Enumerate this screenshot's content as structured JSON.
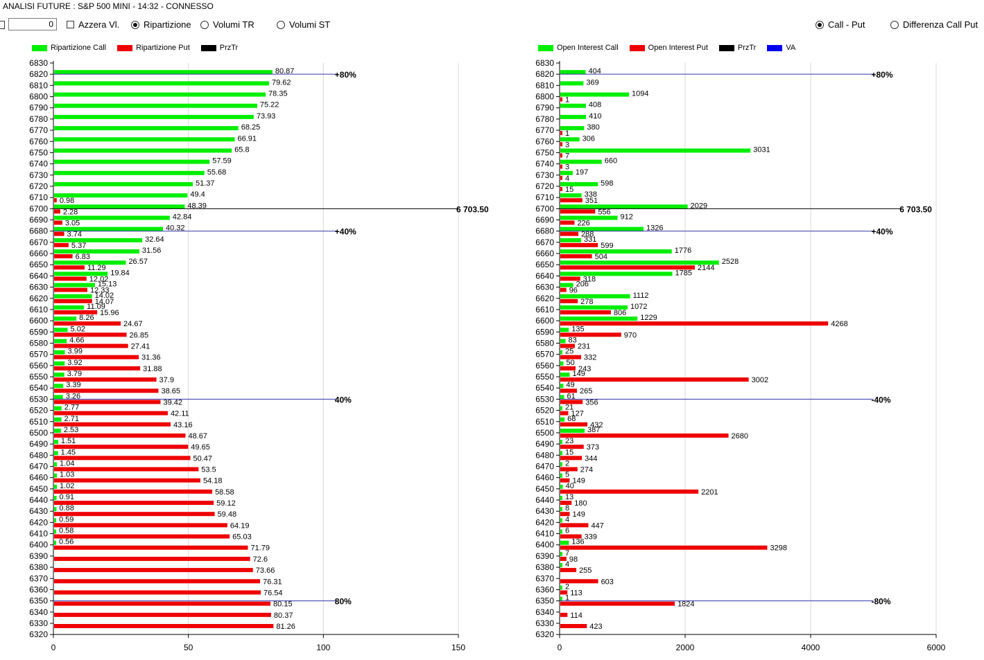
{
  "title": "ANALISI FUTURE : S&P 500 MINI - 14:32 - CONNESSO",
  "toolbar": {
    "number_value": "0",
    "azzera_label": "Azzera Vl.",
    "ripartizione_label": "Ripartizione",
    "volumi_tr_label": "Volumi TR",
    "volumi_st_label": "Volumi ST",
    "call_put_label": "Call - Put",
    "differenza_label": "Differenza Call Put"
  },
  "colors": {
    "call": "#00ee00",
    "put": "#ee0000",
    "przTr": "#000000",
    "va": "#0000ee",
    "level": "#3333aa",
    "grid": "#d8d8d8"
  },
  "legend_left": {
    "call": "Ripartizione Call",
    "put": "Ripartizione Put",
    "przTr": "PrzTr"
  },
  "legend_right": {
    "call": "Open Interest Call",
    "put": "Open Interest Put",
    "przTr": "PrzTr",
    "va": "VA"
  },
  "chart_data": [
    {
      "type": "bar",
      "title": "Ripartizione",
      "ylim": [
        6320,
        6830
      ],
      "xlim": [
        0,
        150
      ],
      "xticks": [
        "0",
        "50",
        "100",
        "150"
      ],
      "strikes": [
        6830,
        6820,
        6810,
        6800,
        6790,
        6780,
        6770,
        6760,
        6750,
        6740,
        6730,
        6720,
        6710,
        6700,
        6690,
        6680,
        6670,
        6660,
        6650,
        6640,
        6630,
        6620,
        6610,
        6600,
        6590,
        6580,
        6570,
        6560,
        6550,
        6540,
        6530,
        6520,
        6510,
        6500,
        6490,
        6480,
        6470,
        6460,
        6450,
        6440,
        6430,
        6420,
        6410,
        6400,
        6390,
        6380,
        6370,
        6360,
        6350,
        6340,
        6330,
        6320
      ],
      "series": [
        {
          "name": "Ripartizione Call",
          "values": [
            null,
            80.87,
            79.62,
            78.35,
            75.22,
            73.93,
            68.25,
            66.91,
            65.8,
            57.59,
            55.68,
            51.37,
            49.4,
            48.39,
            42.84,
            40.32,
            32.64,
            31.56,
            26.57,
            19.84,
            15.13,
            14.02,
            11.09,
            8.26,
            5.02,
            4.66,
            3.99,
            3.92,
            3.79,
            3.39,
            3.26,
            2.77,
            2.71,
            2.53,
            1.51,
            1.45,
            1.04,
            1.03,
            1.02,
            0.91,
            0.88,
            0.59,
            0.58,
            0.56,
            null,
            null,
            null,
            null,
            null,
            null,
            null,
            null
          ],
          "labels": [
            null,
            "80.87",
            "79.62",
            "78.35",
            "75.22",
            "73.93",
            "68.25",
            "66.91",
            "65.8",
            "57.59",
            "55.68",
            "51.37",
            "49.4",
            "48.39",
            "42.84",
            "40.32",
            "32.64",
            "31.56",
            "26.57",
            "19.84",
            "15.13",
            "14.02",
            "11.09",
            "8.26",
            "5.02",
            "4.66",
            "3.99",
            "3.92",
            "3.79",
            "3.39",
            "3.26",
            "2.77",
            "2.71",
            "2.53",
            "1.51",
            "1.45",
            "1.04",
            "1.03",
            "1.02",
            "0.91",
            "0.88",
            "0.59",
            "0.58",
            "0.56",
            null,
            null,
            null,
            null,
            null,
            null,
            null,
            null
          ]
        },
        {
          "name": "Ripartizione Put",
          "values": [
            null,
            null,
            null,
            null,
            null,
            null,
            null,
            null,
            null,
            null,
            null,
            null,
            0.98,
            2.28,
            3.05,
            3.74,
            5.37,
            6.83,
            11.29,
            12.02,
            12.33,
            14.07,
            15.96,
            24.67,
            26.85,
            27.41,
            31.36,
            31.88,
            37.9,
            38.65,
            39.42,
            42.11,
            43.16,
            48.67,
            49.65,
            50.47,
            53.5,
            54.18,
            58.58,
            59.12,
            59.48,
            64.19,
            65.03,
            71.79,
            72.6,
            73.66,
            76.31,
            76.54,
            80.15,
            80.37,
            81.26,
            null
          ],
          "labels": [
            null,
            null,
            null,
            null,
            null,
            null,
            null,
            null,
            null,
            null,
            null,
            null,
            "0.98",
            "2.28",
            "3.05",
            "3.74",
            "5.37",
            "6.83",
            "11.29",
            "12.02",
            "12.33",
            "14.07",
            "15.96",
            "24.67",
            "26.85",
            "27.41",
            "31.36",
            "31.88",
            "37.9",
            "38.65",
            "39.42",
            "42.11",
            "43.16",
            "48.67",
            "49.65",
            "50.47",
            "53.5",
            "54.18",
            "58.58",
            "59.12",
            "59.48",
            "64.19",
            "65.03",
            "71.79",
            "72.6",
            "73.66",
            "76.31",
            "76.54",
            "80.15",
            "80.37",
            "81.26",
            null
          ]
        }
      ],
      "levels": [
        {
          "strike": 6820,
          "label": "+80%",
          "x_end": 105,
          "kind": "level"
        },
        {
          "strike": 6700,
          "label": "6 703.50",
          "x_end": 150,
          "kind": "przTr"
        },
        {
          "strike": 6680,
          "label": "+40%",
          "x_end": 105,
          "kind": "level"
        },
        {
          "strike": 6530,
          "label": "40%",
          "x_end": 105,
          "kind": "level"
        },
        {
          "strike": 6350,
          "label": "80%",
          "x_end": 105,
          "kind": "level"
        }
      ]
    },
    {
      "type": "bar",
      "title": "Open Interest",
      "ylim": [
        6320,
        6830
      ],
      "xlim": [
        0,
        6000
      ],
      "xticks": [
        "0",
        "2000",
        "4000",
        "6000"
      ],
      "strikes": [
        6830,
        6820,
        6810,
        6800,
        6790,
        6780,
        6770,
        6760,
        6750,
        6740,
        6730,
        6720,
        6710,
        6700,
        6690,
        6680,
        6670,
        6660,
        6650,
        6640,
        6630,
        6620,
        6610,
        6600,
        6590,
        6580,
        6570,
        6560,
        6550,
        6540,
        6530,
        6520,
        6510,
        6500,
        6490,
        6480,
        6470,
        6460,
        6450,
        6440,
        6430,
        6420,
        6410,
        6400,
        6390,
        6380,
        6370,
        6360,
        6350,
        6340,
        6330,
        6320
      ],
      "series": [
        {
          "name": "Open Interest Call",
          "values": [
            null,
            404,
            369,
            1094,
            408,
            410,
            380,
            306,
            3031,
            660,
            197,
            598,
            338,
            2029,
            912,
            1326,
            331,
            1776,
            2528,
            1785,
            206,
            1112,
            1072,
            1229,
            135,
            83,
            25,
            50,
            149,
            49,
            61,
            21,
            68,
            387,
            23,
            15,
            2,
            5,
            40,
            13,
            8,
            4,
            6,
            136,
            7,
            4,
            null,
            2,
            1,
            null,
            null,
            null
          ],
          "labels": [
            null,
            "404",
            "369",
            "1094",
            "408",
            "410",
            "380",
            "306",
            "3031",
            "660",
            "197",
            "598",
            "338",
            "2029",
            "912",
            "1326",
            "331",
            "1776",
            "2528",
            "1785",
            "206",
            "1112",
            "1072",
            "1229",
            "135",
            "83",
            "25",
            "50",
            "149",
            "49",
            "61",
            "21",
            "68",
            "387",
            "23",
            "15",
            "2",
            "5",
            "40",
            "13",
            "8",
            "4",
            "6",
            "136",
            "7",
            "4",
            null,
            "2",
            "1",
            null,
            null,
            null
          ]
        },
        {
          "name": "Open Interest Put",
          "values": [
            null,
            null,
            null,
            1,
            null,
            null,
            1,
            3,
            7,
            3,
            4,
            15,
            351,
            556,
            226,
            288,
            599,
            504,
            2144,
            318,
            96,
            278,
            806,
            4268,
            970,
            231,
            332,
            243,
            3002,
            265,
            356,
            127,
            432,
            2680,
            373,
            344,
            274,
            149,
            2201,
            180,
            149,
            447,
            339,
            3298,
            98,
            255,
            603,
            113,
            1824,
            114,
            423,
            null
          ],
          "labels": [
            null,
            null,
            null,
            "1",
            null,
            null,
            "1",
            "3",
            "7",
            "3",
            "4",
            "15",
            "351",
            "556",
            "226",
            "288",
            "599",
            "504",
            "2144",
            "318",
            "96",
            "278",
            "806",
            "4268",
            "970",
            "231",
            "332",
            "243",
            "3002",
            "265",
            "356",
            "127",
            "432",
            "2680",
            "373",
            "344",
            "274",
            "149",
            "2201",
            "180",
            "149",
            "447",
            "339",
            "3298",
            "98",
            "255",
            "603",
            "113",
            "1824",
            "114",
            "423",
            null
          ]
        }
      ],
      "levels": [
        {
          "strike": 6820,
          "label": "+80%",
          "x_end": 5000,
          "kind": "level"
        },
        {
          "strike": 6700,
          "label": "6 703.50",
          "x_end": 5450,
          "kind": "przTr"
        },
        {
          "strike": 6680,
          "label": "+40%",
          "x_end": 5000,
          "kind": "level"
        },
        {
          "strike": 6530,
          "label": "-40%",
          "x_end": 5000,
          "kind": "level"
        },
        {
          "strike": 6350,
          "label": "-80%",
          "x_end": 5000,
          "kind": "level"
        }
      ]
    }
  ]
}
